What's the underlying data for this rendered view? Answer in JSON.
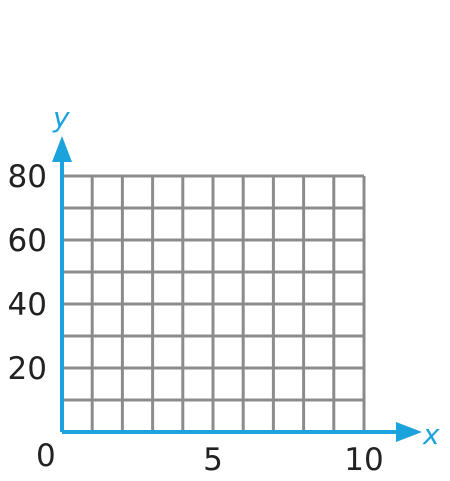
{
  "chart_data": {
    "type": "scatter",
    "title": "",
    "xlabel": "x",
    "ylabel": "y",
    "xlim": [
      0,
      10
    ],
    "ylim": [
      0,
      80
    ],
    "x_grid_step": 1,
    "y_grid_step": 10,
    "x_tick_labels": [
      {
        "value": 5,
        "text": "5"
      },
      {
        "value": 10,
        "text": "10"
      }
    ],
    "y_tick_labels": [
      {
        "value": 20,
        "text": "20"
      },
      {
        "value": 40,
        "text": "40"
      },
      {
        "value": 60,
        "text": "60"
      },
      {
        "value": 80,
        "text": "80"
      }
    ],
    "origin_label": "0",
    "series": [],
    "grid": true,
    "colors": {
      "axis": "#1aa3dd",
      "grid": "#8c8c8c",
      "tick_text": "#222222"
    }
  }
}
